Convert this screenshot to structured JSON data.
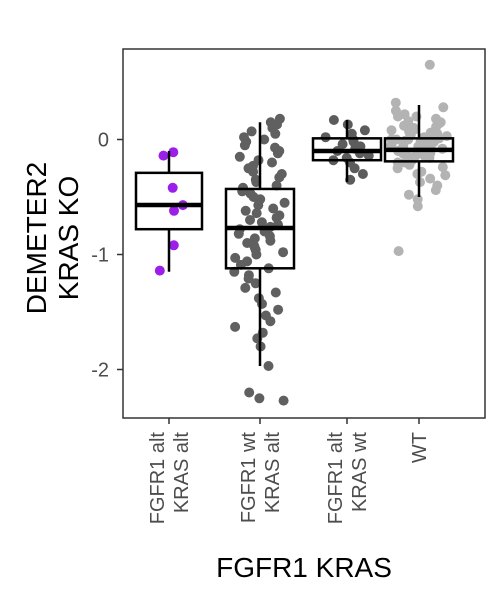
{
  "chart_data": {
    "type": "box",
    "title": "",
    "xlabel": "FGFR1 KRAS",
    "ylabel_lines": [
      "DEMETER2",
      "KRAS KO"
    ],
    "ylim": [
      -2.42,
      0.78
    ],
    "yticks": [
      0,
      -1,
      -2
    ],
    "ytick_labels": [
      "0",
      "-1",
      "-2"
    ],
    "grid": false,
    "legend": "none",
    "categories": [
      {
        "label_lines": [
          "FGFR1 alt",
          "KRAS alt"
        ],
        "color": "#9b1fe8"
      },
      {
        "label_lines": [
          "FGFR1 wt",
          "KRAS alt"
        ],
        "color": "#606060"
      },
      {
        "label_lines": [
          "FGFR1 alt",
          "KRAS wt"
        ],
        "color": "#5c5c5c"
      },
      {
        "label_lines": [
          "WT"
        ],
        "color": "#b3b3b3"
      }
    ],
    "boxes": [
      {
        "q1": -0.78,
        "median": -0.57,
        "q3": -0.29,
        "whisker_low": -1.15,
        "whisker_high": -0.1
      },
      {
        "q1": -1.12,
        "median": -0.77,
        "q3": -0.43,
        "whisker_low": -1.97,
        "whisker_high": 0.15
      },
      {
        "q1": -0.18,
        "median": -0.1,
        "q3": 0.01,
        "whisker_low": -0.37,
        "whisker_high": 0.17
      },
      {
        "q1": -0.19,
        "median": -0.09,
        "q3": 0.01,
        "whisker_low": -0.5,
        "whisker_high": 0.3
      }
    ],
    "points": [
      [
        -0.11,
        -0.14,
        -0.42,
        -0.57,
        -0.62,
        -0.92,
        -1.14
      ],
      [
        0.18,
        0.15,
        0.13,
        0.1,
        0.07,
        0.05,
        0.02,
        0.0,
        -0.02,
        -0.05,
        -0.07,
        -0.1,
        -0.12,
        -0.15,
        -0.18,
        -0.2,
        -0.23,
        -0.25,
        -0.28,
        -0.3,
        -0.33,
        -0.35,
        -0.37,
        -0.4,
        -0.42,
        -0.45,
        -0.47,
        -0.5,
        -0.52,
        -0.55,
        -0.57,
        -0.6,
        -0.62,
        -0.64,
        -0.66,
        -0.68,
        -0.7,
        -0.72,
        -0.74,
        -0.76,
        -0.78,
        -0.8,
        -0.82,
        -0.84,
        -0.86,
        -0.88,
        -0.9,
        -0.92,
        -0.94,
        -0.96,
        -0.98,
        -1.0,
        -1.03,
        -1.06,
        -1.09,
        -1.12,
        -1.15,
        -1.18,
        -1.21,
        -1.25,
        -1.29,
        -1.33,
        -1.38,
        -1.43,
        -1.48,
        -1.53,
        -1.58,
        -1.63,
        -1.68,
        -1.73,
        -1.8,
        -1.97,
        -2.2,
        -2.25,
        -2.27
      ],
      [
        0.17,
        0.13,
        0.08,
        0.05,
        0.02,
        0.0,
        -0.02,
        -0.04,
        -0.06,
        -0.08,
        -0.1,
        -0.12,
        -0.14,
        -0.16,
        -0.18,
        -0.2,
        -0.25,
        -0.3,
        -0.35
      ],
      [
        0.65,
        0.32,
        0.28,
        0.25,
        0.22,
        0.2,
        0.18,
        0.16,
        0.14,
        0.12,
        0.11,
        0.1,
        0.09,
        0.08,
        0.07,
        0.06,
        0.05,
        0.04,
        0.03,
        0.02,
        0.01,
        0.0,
        0.0,
        -0.01,
        -0.02,
        -0.03,
        -0.04,
        -0.05,
        -0.06,
        -0.07,
        -0.08,
        -0.09,
        -0.1,
        -0.11,
        -0.12,
        -0.13,
        -0.14,
        -0.15,
        -0.16,
        -0.17,
        -0.18,
        -0.2,
        -0.22,
        -0.25,
        -0.28,
        -0.31,
        -0.34,
        -0.37,
        -0.4,
        -0.44,
        -0.48,
        -0.52,
        -0.58,
        -0.97,
        0.15,
        0.05,
        -0.05,
        -0.15,
        0.1,
        0.0,
        -0.1,
        -0.2,
        0.2,
        -0.02,
        -0.08,
        -0.12,
        0.04,
        -0.06,
        -0.3,
        -0.24
      ]
    ]
  }
}
